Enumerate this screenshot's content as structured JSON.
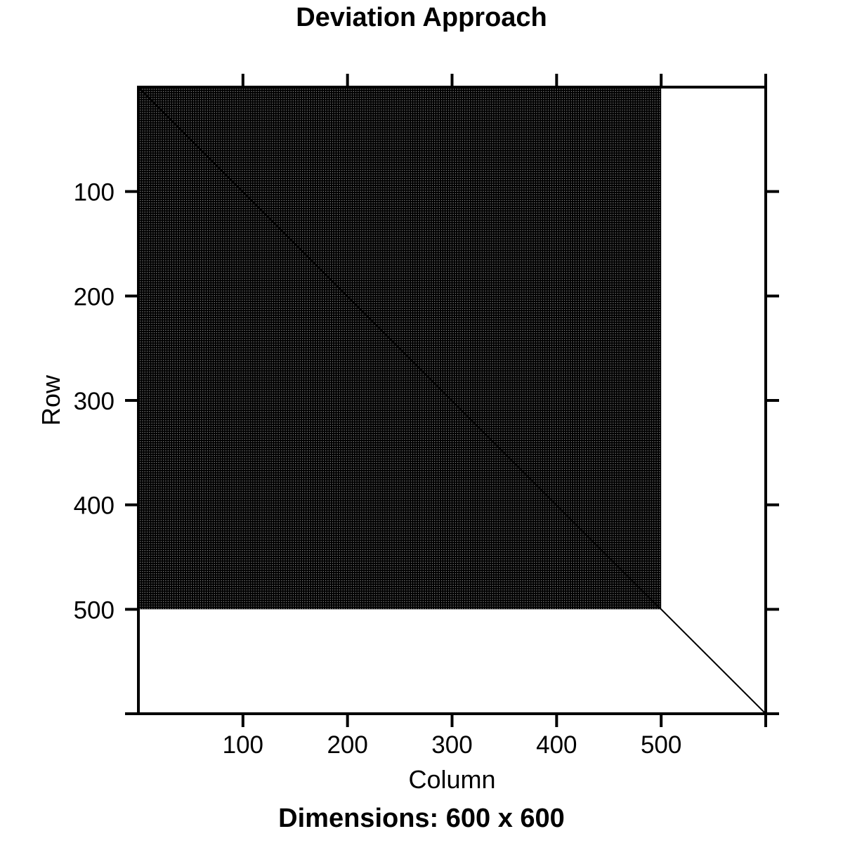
{
  "page": {
    "background_color": "#ffffff",
    "ink_color": "#000000"
  },
  "chart_data": {
    "type": "heatmap",
    "title": "Deviation Approach",
    "xlabel": "Column",
    "ylabel": "Row",
    "caption": "Dimensions: 600 x 600",
    "matrix": {
      "rows": 600,
      "cols": 600
    },
    "xlim": [
      0,
      600
    ],
    "ylim": [
      0,
      600
    ],
    "y_axis_direction": "down",
    "tick_step": 100,
    "x_tick_labels": [
      100,
      200,
      300,
      400,
      500
    ],
    "y_tick_labels": [
      100,
      200,
      300,
      400,
      500
    ],
    "ticks_on_all_four_sides": true,
    "grid": false,
    "legend": false,
    "regions": [
      {
        "name": "dense-block-region",
        "rows": [
          0,
          500
        ],
        "cols": [
          0,
          500
        ],
        "appearance": "stippled near-black fill (fine white dot halftone)",
        "fill_base_color": "#000000",
        "dot_color": "#d9d9d9"
      },
      {
        "name": "main-diagonal-line",
        "from": [
          0,
          0
        ],
        "to": [
          600,
          600
        ],
        "appearance": "thin black diagonal line",
        "color": "#000000"
      }
    ]
  }
}
